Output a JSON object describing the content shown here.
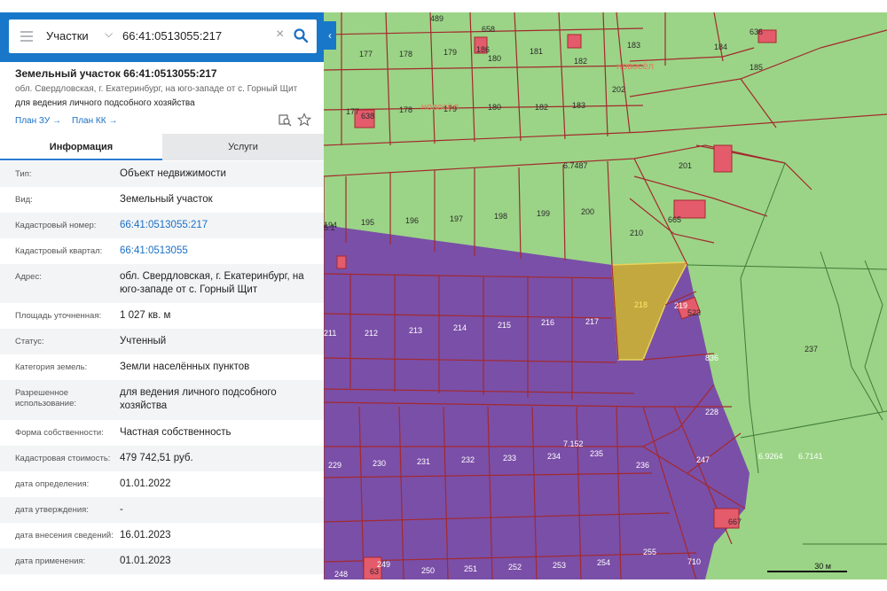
{
  "search": {
    "category": "Участки",
    "query": "66:41:0513055:217"
  },
  "parcel": {
    "title": "Земельный участок 66:41:0513055:217",
    "address_short": "обл. Свердловская, г. Екатеринбург, на юго-западе от с. Горный Щит",
    "purpose": "для ведения личного подсобного хозяйства",
    "links": [
      "План ЗУ →",
      "План КК →"
    ]
  },
  "tabs": [
    "Информация",
    "Услуги"
  ],
  "info_rows": [
    {
      "label": "Тип:",
      "value": "Объект недвижимости"
    },
    {
      "label": "Вид:",
      "value": "Земельный участок"
    },
    {
      "label": "Кадастровый номер:",
      "value": "66:41:0513055:217"
    },
    {
      "label": "Кадастровый квартал:",
      "value": "66:41:0513055"
    },
    {
      "label": "Адрес:",
      "value_lines": [
        "обл. Свердловская, г. Екатеринбург, на",
        "юго-западе от с. Горный Щит"
      ]
    },
    {
      "label": "Площадь уточненная:",
      "value": "1 027 кв. м"
    },
    {
      "label": "Статус:",
      "value": "Учтенный"
    },
    {
      "label": "Категория земель:",
      "value": "Земли населённых пунктов"
    },
    {
      "label_lines": [
        "Разрешенное",
        "использование:"
      ],
      "value_lines": [
        "для ведения личного подсобного",
        "хозяйства"
      ]
    },
    {
      "label": "Форма собственности:",
      "value": "Частная собственность"
    },
    {
      "label": "Кадастровая стоимость:",
      "value": "479 742,51 руб."
    },
    {
      "label": "дата определения:",
      "value": "01.01.2022"
    },
    {
      "label": "дата утверждения:",
      "value": "-"
    },
    {
      "label": "дата внесения сведений:",
      "value": "16.01.2023"
    },
    {
      "label": "дата применения:",
      "value": "01.01.2023"
    }
  ],
  "map": {
    "scale_label": "30 м",
    "colors": {
      "green_zone": "#9bd486",
      "purple_zone": "#7a4fa8",
      "selected_parcel": "#c2a83e",
      "parcel_border": "#a3292e",
      "building": "#e45b6c"
    },
    "block_labels": [
      "6.7487",
      "7.152",
      "6.9264",
      "6.7141"
    ],
    "parcel_labels": [
      "489",
      "177",
      "178",
      "179",
      "180",
      "181",
      "182",
      "183",
      "184",
      "185",
      "658",
      "177",
      "178",
      "179",
      "180",
      "182",
      "183",
      "202",
      "201",
      "665",
      "194",
      "195",
      "196",
      "197",
      "198",
      "199",
      "200",
      "210",
      "211",
      "212",
      "213",
      "214",
      "215",
      "216",
      "217",
      "218",
      "219",
      "836",
      "523",
      "237",
      "228",
      "229",
      "230",
      "231",
      "232",
      "233",
      "234",
      "235",
      "236",
      "247",
      "248",
      "249",
      "250",
      "251",
      "252",
      "253",
      "254",
      "255",
      "710",
      "667",
      "63",
      "5.1",
      "638",
      "186",
      "636"
    ]
  },
  "watermark": "новосёл"
}
